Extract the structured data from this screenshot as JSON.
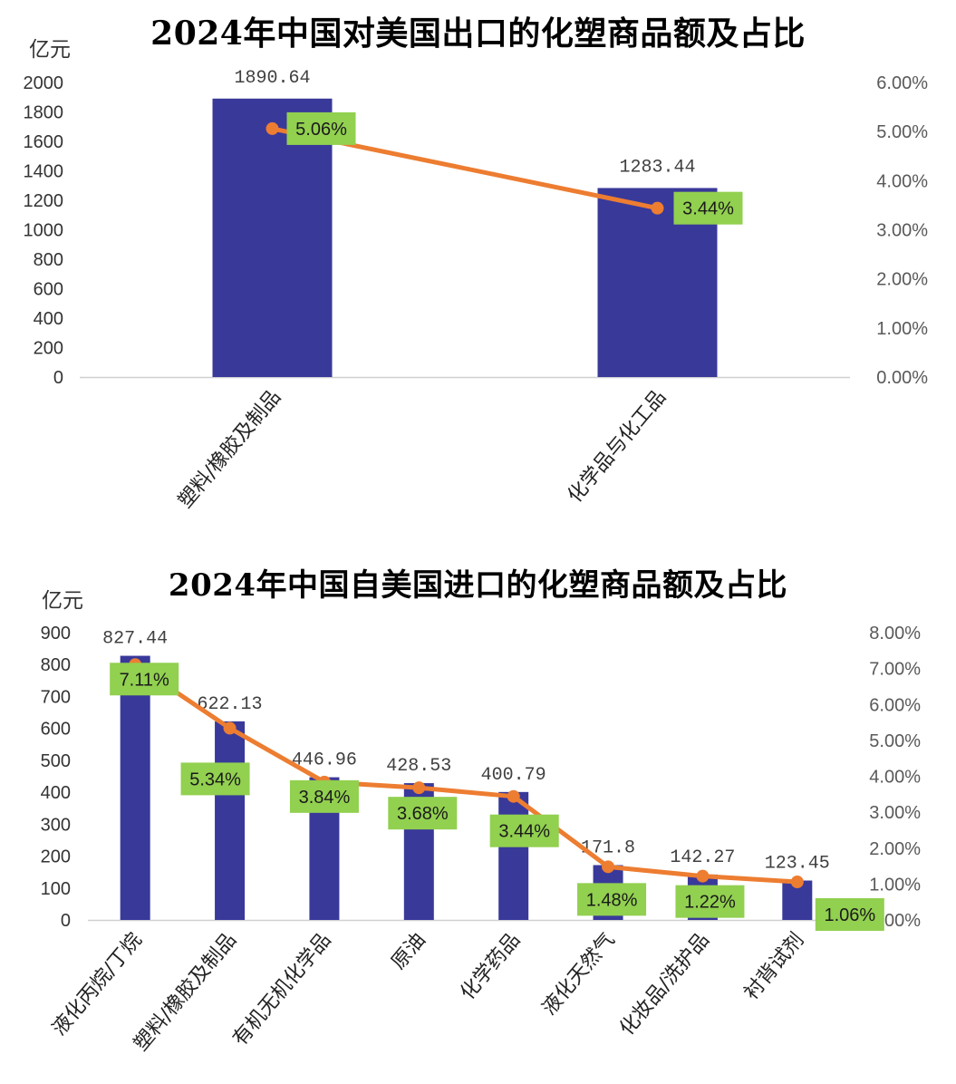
{
  "chart_data": [
    {
      "type": "bar",
      "title": "2024年中国对美国出口的化塑商品额及占比",
      "ylabel": "亿元",
      "categories": [
        "塑料/橡胶及制品",
        "化学品与化工品"
      ],
      "series": [
        {
          "type": "bar",
          "values": [
            1890.64,
            1283.44
          ],
          "value_labels": [
            "1890.64",
            "1283.44"
          ],
          "color": "#39399a"
        },
        {
          "type": "line",
          "axis": "right",
          "values": [
            5.06,
            3.44
          ],
          "value_labels": [
            "5.06%",
            "3.44%"
          ],
          "color": "#ed7d31"
        }
      ],
      "ylim": [
        0,
        2000
      ],
      "y_ticks": [
        "0",
        "200",
        "400",
        "600",
        "800",
        "1000",
        "1200",
        "1400",
        "1600",
        "1800",
        "2000"
      ],
      "y2lim": [
        0,
        6
      ],
      "y2_ticks": [
        "0.00%",
        "1.00%",
        "2.00%",
        "3.00%",
        "4.00%",
        "5.00%",
        "6.00%"
      ],
      "grid": false,
      "label_bg_color": "#92d050"
    },
    {
      "type": "bar",
      "title": "2024年中国自美国进口的化塑商品额及占比",
      "ylabel": "亿元",
      "categories": [
        "液化丙烷/丁烷",
        "塑料/橡胶及制品",
        "有机无机化学品",
        "原油",
        "化学药品",
        "液化天然气",
        "化妆品/洗护品",
        "衬背试剂"
      ],
      "series": [
        {
          "type": "bar",
          "values": [
            827.44,
            622.13,
            446.96,
            428.53,
            400.79,
            171.8,
            142.27,
            123.45
          ],
          "value_labels": [
            "827.44",
            "622.13",
            "446.96",
            "428.53",
            "400.79",
            "171.8",
            "142.27",
            "123.45"
          ],
          "color": "#39399a"
        },
        {
          "type": "line",
          "axis": "right",
          "values": [
            7.11,
            5.34,
            3.84,
            3.68,
            3.44,
            1.48,
            1.22,
            1.06
          ],
          "value_labels": [
            "7.11%",
            "5.34%",
            "3.84%",
            "3.68%",
            "3.44%",
            "1.48%",
            "1.22%",
            "1.06%"
          ],
          "color": "#ed7d31"
        }
      ],
      "ylim": [
        0,
        900
      ],
      "y_ticks": [
        "0",
        "100",
        "200",
        "300",
        "400",
        "500",
        "600",
        "700",
        "800",
        "900"
      ],
      "y2lim": [
        0,
        8
      ],
      "y2_ticks": [
        "0.00%",
        "1.00%",
        "2.00%",
        "3.00%",
        "4.00%",
        "5.00%",
        "6.00%",
        "7.00%",
        "8.00%"
      ],
      "grid": false,
      "label_bg_color": "#92d050"
    }
  ]
}
